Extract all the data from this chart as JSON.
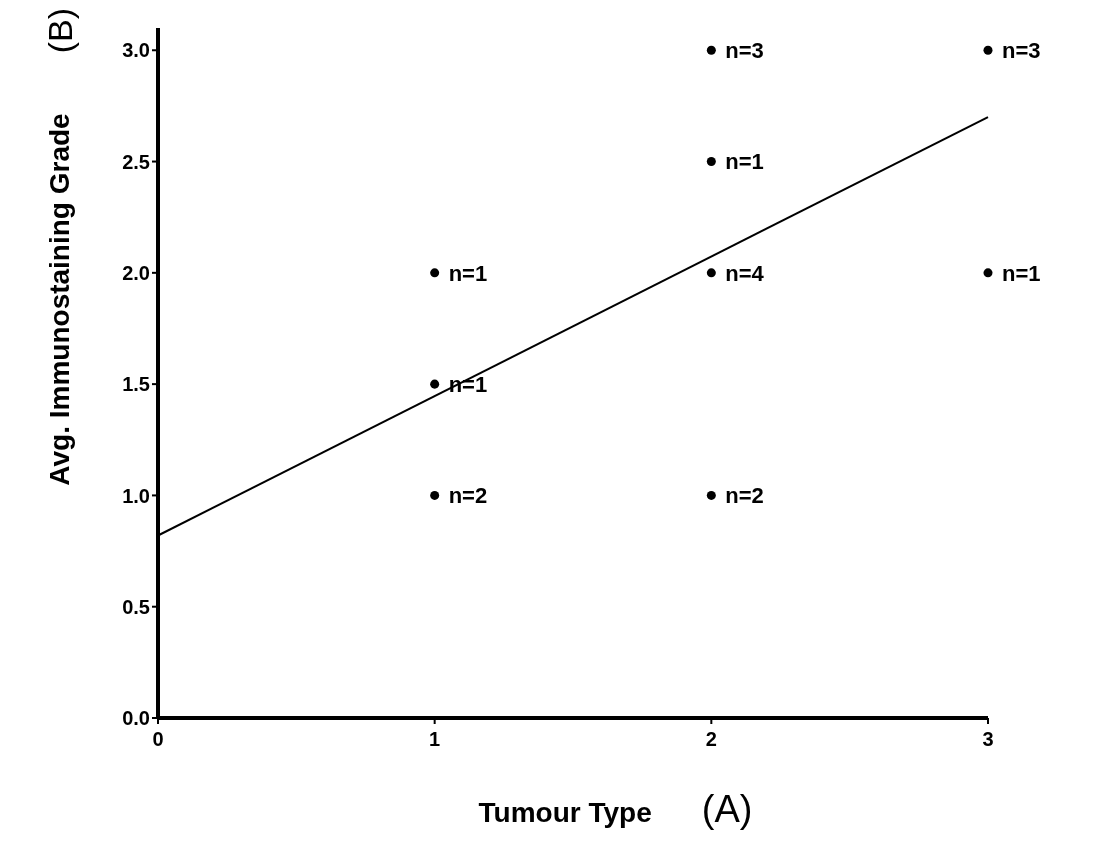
{
  "chart_data": {
    "type": "scatter",
    "xlabel": "Tumour Type",
    "ylabel": "Avg. Immunostaining Grade",
    "xlim": [
      0,
      3
    ],
    "xticks": [
      0,
      1,
      2,
      3
    ],
    "ylim": [
      0,
      3.1
    ],
    "yticks": [
      {
        "value": 0,
        "label": "0.0"
      },
      0.5,
      {
        "value": 1,
        "label": "1.0"
      },
      1.5,
      {
        "value": 2,
        "label": "2.0"
      },
      2.5,
      {
        "value": 3,
        "label": "3.0"
      }
    ],
    "grid": false,
    "series": [
      {
        "type": "scatter",
        "marker": "circle",
        "color": "#000000",
        "x": [
          1,
          1,
          1,
          2,
          2,
          2,
          2,
          3,
          3
        ],
        "values": [
          2,
          1.5,
          1,
          3,
          2.5,
          2,
          1,
          3,
          2
        ]
      },
      {
        "type": "line",
        "color": "#000000",
        "x": [
          0,
          3
        ],
        "values": [
          0.82,
          2.7
        ],
        "line_style": "solid"
      }
    ],
    "annotations": [
      "(A)",
      "(B)",
      {
        "text": "n=1",
        "x": 1,
        "y": 2
      },
      {
        "text": "n=1",
        "x": 1,
        "y": 1.5
      },
      {
        "text": "n=2",
        "x": 1,
        "y": 1
      },
      {
        "text": "n=3",
        "x": 2,
        "y": 3
      },
      {
        "text": "n=1",
        "x": 2,
        "y": 2.5
      },
      {
        "text": "n=4",
        "x": 2,
        "y": 2
      },
      {
        "text": "n=2",
        "x": 2,
        "y": 1
      },
      {
        "text": "n=3",
        "x": 3,
        "y": 3
      },
      {
        "text": "n=1",
        "x": 3,
        "y": 2
      }
    ]
  }
}
